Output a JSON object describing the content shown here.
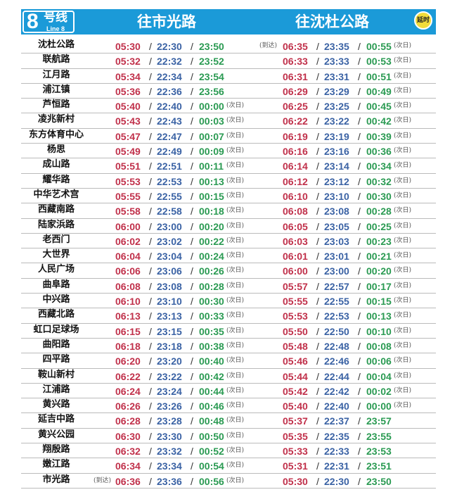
{
  "header": {
    "line_number": "8",
    "line_cn": "号线",
    "line_en": "Line 8",
    "dir_left": "往市光路",
    "dir_right": "往沈杜公路",
    "delay_badge": "延时"
  },
  "labels": {
    "next_day": "(次日)",
    "arrive": "(到达)"
  },
  "colors": {
    "header": "#1b9ad8",
    "first": "#c0304a",
    "last": "#3a62a4",
    "extended": "#2a9a52"
  },
  "rows": [
    [
      "沈杜公路",
      "05:30",
      "22:30",
      "23:50",
      false,
      "06:35",
      "23:35",
      "00:55",
      true,
      "",
      "right"
    ],
    [
      "联航路",
      "05:32",
      "22:32",
      "23:52",
      false,
      "06:33",
      "23:33",
      "00:53",
      true
    ],
    [
      "江月路",
      "05:34",
      "22:34",
      "23:54",
      false,
      "06:31",
      "23:31",
      "00:51",
      true
    ],
    [
      "浦江镇",
      "05:36",
      "22:36",
      "23:56",
      false,
      "06:29",
      "23:29",
      "00:49",
      true
    ],
    [
      "芦恒路",
      "05:40",
      "22:40",
      "00:00",
      true,
      "06:25",
      "23:25",
      "00:45",
      true
    ],
    [
      "凌兆新村",
      "05:43",
      "22:43",
      "00:03",
      true,
      "06:22",
      "23:22",
      "00:42",
      true
    ],
    [
      "东方体育中心",
      "05:47",
      "22:47",
      "00:07",
      true,
      "06:19",
      "23:19",
      "00:39",
      true
    ],
    [
      "杨思",
      "05:49",
      "22:49",
      "00:09",
      true,
      "06:16",
      "23:16",
      "00:36",
      true
    ],
    [
      "成山路",
      "05:51",
      "22:51",
      "00:11",
      true,
      "06:14",
      "23:14",
      "00:34",
      true
    ],
    [
      "耀华路",
      "05:53",
      "22:53",
      "00:13",
      true,
      "06:12",
      "23:12",
      "00:32",
      true
    ],
    [
      "中华艺术宫",
      "05:55",
      "22:55",
      "00:15",
      true,
      "06:10",
      "23:10",
      "00:30",
      true
    ],
    [
      "西藏南路",
      "05:58",
      "22:58",
      "00:18",
      true,
      "06:08",
      "23:08",
      "00:28",
      true
    ],
    [
      "陆家浜路",
      "06:00",
      "23:00",
      "00:20",
      true,
      "06:05",
      "23:05",
      "00:25",
      true
    ],
    [
      "老西门",
      "06:02",
      "23:02",
      "00:22",
      true,
      "06:03",
      "23:03",
      "00:23",
      true
    ],
    [
      "大世界",
      "06:04",
      "23:04",
      "00:24",
      true,
      "06:01",
      "23:01",
      "00:21",
      true
    ],
    [
      "人民广场",
      "06:06",
      "23:06",
      "00:26",
      true,
      "06:00",
      "23:00",
      "00:20",
      true
    ],
    [
      "曲阜路",
      "06:08",
      "23:08",
      "00:28",
      true,
      "05:57",
      "22:57",
      "00:17",
      true
    ],
    [
      "中兴路",
      "06:10",
      "23:10",
      "00:30",
      true,
      "05:55",
      "22:55",
      "00:15",
      true
    ],
    [
      "西藏北路",
      "06:13",
      "23:13",
      "00:33",
      true,
      "05:53",
      "22:53",
      "00:13",
      true
    ],
    [
      "虹口足球场",
      "06:15",
      "23:15",
      "00:35",
      true,
      "05:50",
      "22:50",
      "00:10",
      true
    ],
    [
      "曲阳路",
      "06:18",
      "23:18",
      "00:38",
      true,
      "05:48",
      "22:48",
      "00:08",
      true
    ],
    [
      "四平路",
      "06:20",
      "23:20",
      "00:40",
      true,
      "05:46",
      "22:46",
      "00:06",
      true
    ],
    [
      "鞍山新村",
      "06:22",
      "23:22",
      "00:42",
      true,
      "05:44",
      "22:44",
      "00:04",
      true
    ],
    [
      "江浦路",
      "06:24",
      "23:24",
      "00:44",
      true,
      "05:42",
      "22:42",
      "00:02",
      true
    ],
    [
      "黄兴路",
      "06:26",
      "23:26",
      "00:46",
      true,
      "05:40",
      "22:40",
      "00:00",
      true
    ],
    [
      "延吉中路",
      "06:28",
      "23:28",
      "00:48",
      true,
      "05:37",
      "22:37",
      "23:57",
      false
    ],
    [
      "黄兴公园",
      "06:30",
      "23:30",
      "00:50",
      true,
      "05:35",
      "22:35",
      "23:55",
      false
    ],
    [
      "翔殷路",
      "06:32",
      "23:32",
      "00:52",
      true,
      "05:33",
      "22:33",
      "23:53",
      false
    ],
    [
      "嫩江路",
      "06:34",
      "23:34",
      "00:54",
      true,
      "05:31",
      "22:31",
      "23:51",
      false
    ],
    [
      "市光路",
      "06:36",
      "23:36",
      "00:56",
      true,
      "05:30",
      "22:30",
      "23:50",
      false,
      "",
      "left"
    ]
  ]
}
